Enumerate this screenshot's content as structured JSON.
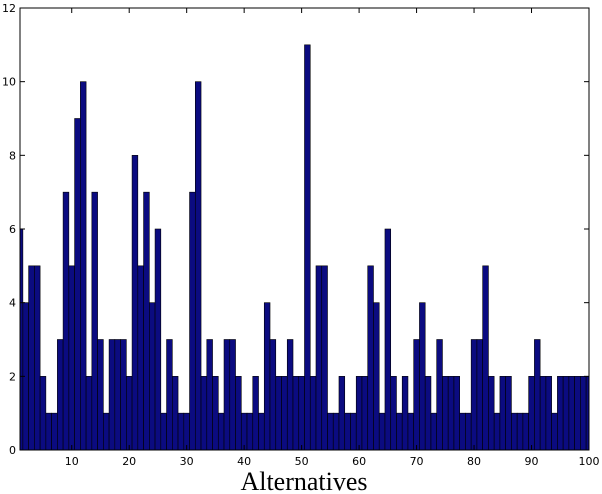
{
  "chart_data": {
    "type": "bar",
    "x_label": "Alternatives",
    "color": "#0b0b80",
    "x": [
      1,
      2,
      3,
      4,
      5,
      6,
      7,
      8,
      9,
      10,
      11,
      12,
      13,
      14,
      15,
      16,
      17,
      18,
      19,
      20,
      21,
      22,
      23,
      24,
      25,
      26,
      27,
      28,
      29,
      30,
      31,
      32,
      33,
      34,
      35,
      36,
      37,
      38,
      39,
      40,
      41,
      42,
      43,
      44,
      45,
      46,
      47,
      48,
      49,
      50,
      51,
      52,
      53,
      54,
      55,
      56,
      57,
      58,
      59,
      60,
      61,
      62,
      63,
      64,
      65,
      66,
      67,
      68,
      69,
      70,
      71,
      72,
      73,
      74,
      75,
      76,
      77,
      78,
      79,
      80,
      81,
      82,
      83,
      84,
      85,
      86,
      87,
      88,
      89,
      90,
      91,
      92,
      93,
      94,
      95,
      96,
      97,
      98,
      99,
      100
    ],
    "values": [
      6,
      4,
      5,
      5,
      2,
      1,
      1,
      3,
      7,
      5,
      9,
      10,
      2,
      7,
      3,
      1,
      3,
      3,
      3,
      2,
      8,
      5,
      7,
      4,
      6,
      1,
      3,
      2,
      1,
      1,
      7,
      10,
      2,
      3,
      2,
      1,
      3,
      3,
      2,
      1,
      1,
      2,
      1,
      4,
      3,
      2,
      2,
      3,
      2,
      2,
      11,
      2,
      5,
      5,
      1,
      1,
      2,
      1,
      1,
      2,
      2,
      5,
      4,
      1,
      6,
      2,
      1,
      2,
      1,
      3,
      4,
      2,
      1,
      3,
      2,
      2,
      2,
      1,
      1,
      3,
      3,
      5,
      2,
      1,
      2,
      2,
      1,
      1,
      1,
      2,
      3,
      2,
      2,
      1,
      2,
      2,
      2,
      2,
      2,
      2
    ],
    "xlim": [
      1,
      100
    ],
    "xticks": [
      10,
      20,
      30,
      40,
      50,
      60,
      70,
      80,
      90,
      100
    ],
    "ylim": [
      0,
      12
    ],
    "yticks": [
      0,
      2,
      4,
      6,
      8,
      10,
      12
    ]
  }
}
